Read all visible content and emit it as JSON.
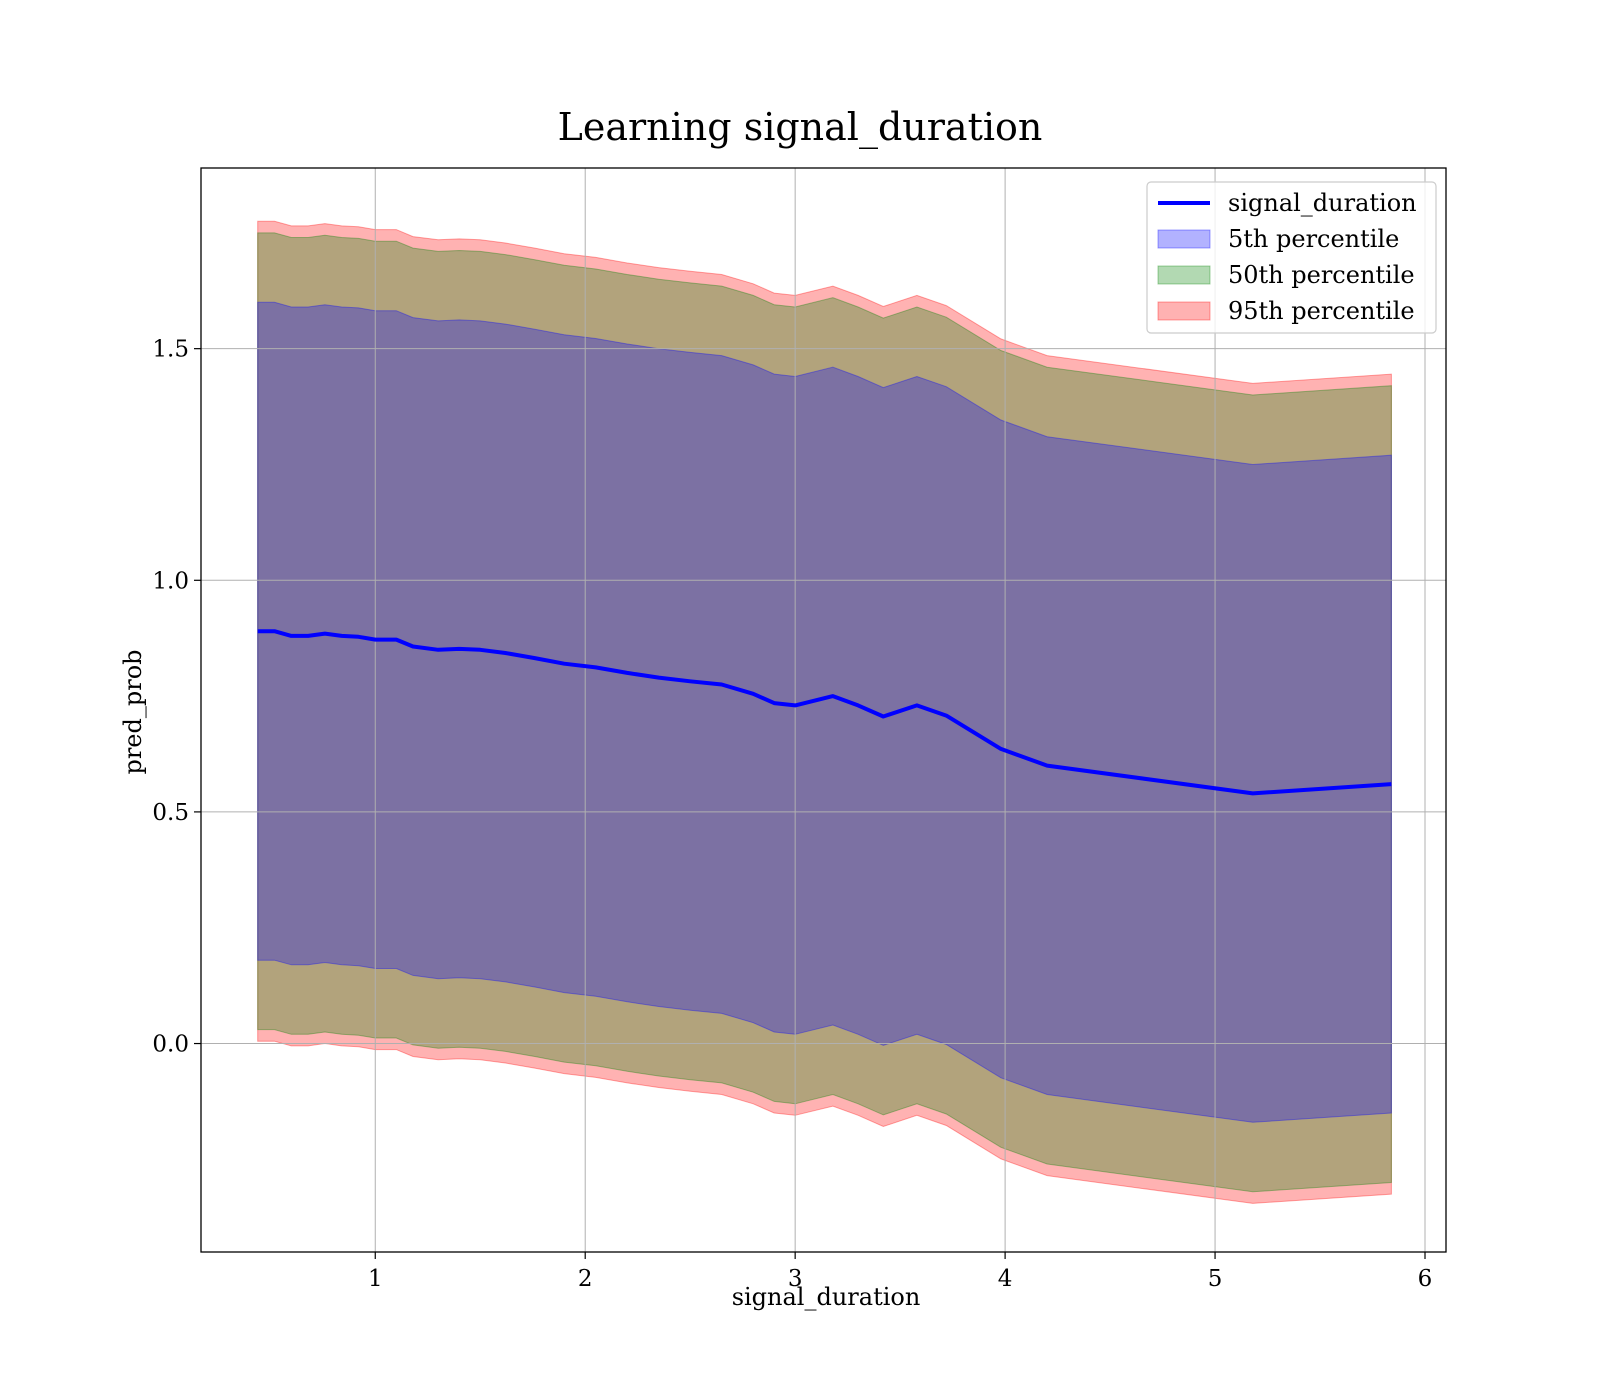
{
  "chart_data": {
    "type": "area",
    "title": "Learning signal_duration",
    "xlabel": "signal_duration",
    "ylabel": "pred_prob",
    "xlim": [
      0.17,
      6.1
    ],
    "ylim": [
      -0.45,
      1.89
    ],
    "x_ticks": [
      1,
      2,
      3,
      4,
      5,
      6
    ],
    "x_tick_labels": [
      "1",
      "2",
      "3",
      "4",
      "5",
      "6"
    ],
    "y_ticks": [
      0.0,
      0.5,
      1.0,
      1.5
    ],
    "y_tick_labels": [
      "0.0",
      "0.5",
      "1.0",
      "1.5"
    ],
    "grid": true,
    "legend_position": "upper right",
    "legend": [
      {
        "label": "signal_duration",
        "kind": "line",
        "color": "#0000ff"
      },
      {
        "label": "5th percentile",
        "kind": "patch",
        "color": "#0000ff"
      },
      {
        "label": "50th percentile",
        "kind": "patch",
        "color": "#008000"
      },
      {
        "label": "95th percentile",
        "kind": "patch",
        "color": "#ff0000"
      }
    ],
    "x": [
      0.44,
      0.52,
      0.6,
      0.68,
      0.76,
      0.84,
      0.92,
      1.0,
      1.1,
      1.18,
      1.3,
      1.4,
      1.5,
      1.62,
      1.76,
      1.9,
      2.05,
      2.2,
      2.35,
      2.5,
      2.65,
      2.8,
      2.9,
      3.0,
      3.18,
      3.3,
      3.42,
      3.58,
      3.72,
      3.98,
      4.2,
      5.18,
      5.84
    ],
    "center": [
      0.89,
      0.89,
      0.88,
      0.88,
      0.885,
      0.88,
      0.878,
      0.872,
      0.872,
      0.857,
      0.85,
      0.852,
      0.85,
      0.843,
      0.832,
      0.82,
      0.812,
      0.8,
      0.79,
      0.782,
      0.775,
      0.755,
      0.735,
      0.73,
      0.75,
      0.73,
      0.706,
      0.73,
      0.708,
      0.636,
      0.6,
      0.54,
      0.56
    ],
    "bands": [
      {
        "name": "5th percentile",
        "color": "#0000ff",
        "half_width": 0.71
      },
      {
        "name": "50th percentile",
        "color": "#008000",
        "half_width": 0.86
      },
      {
        "name": "95th percentile",
        "color": "#ff0000",
        "half_width": 0.885
      }
    ]
  }
}
